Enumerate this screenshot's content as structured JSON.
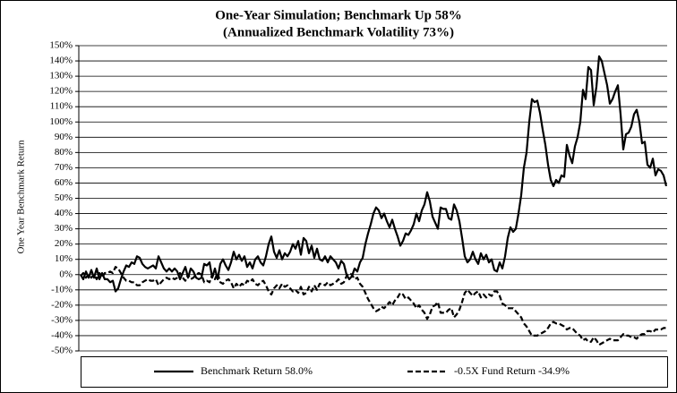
{
  "chart_data": {
    "type": "line",
    "title": "One-Year Simulation; Benchmark Up 58%",
    "subtitle": "(Annualized Benchmark Volatility 73%)",
    "ylabel": "One Year Benchmark Return",
    "ylim": [
      -50,
      150
    ],
    "yticks": [
      {
        "value": -50,
        "label": "-50%"
      },
      {
        "value": -40,
        "label": "-40%"
      },
      {
        "value": -30,
        "label": "-30%"
      },
      {
        "value": -20,
        "label": "-20%"
      },
      {
        "value": -10,
        "label": "-10%"
      },
      {
        "value": 0,
        "label": "0%"
      },
      {
        "value": 10,
        "label": "10%"
      },
      {
        "value": 20,
        "label": "20%"
      },
      {
        "value": 30,
        "label": "30%"
      },
      {
        "value": 40,
        "label": "40%"
      },
      {
        "value": 50,
        "label": "50%"
      },
      {
        "value": 60,
        "label": "60%"
      },
      {
        "value": 70,
        "label": "70%"
      },
      {
        "value": 80,
        "label": "80%"
      },
      {
        "value": 90,
        "label": "90%"
      },
      {
        "value": 100,
        "label": "100%"
      },
      {
        "value": 110,
        "label": "110%"
      },
      {
        "value": 120,
        "label": "120%"
      },
      {
        "value": 130,
        "label": "130%"
      },
      {
        "value": 140,
        "label": "140%"
      },
      {
        "value": 150,
        "label": "150%"
      }
    ],
    "grid": true,
    "legend": "bottom",
    "series": [
      {
        "name": "Benchmark Return 58.0%",
        "color": "#000000",
        "style": "solid",
        "values": [
          0,
          -3,
          2,
          -2,
          3,
          -2,
          4,
          -3,
          1,
          -3,
          -3,
          -5,
          -4,
          -11,
          -9,
          -3,
          2,
          6,
          5,
          8,
          7,
          12,
          11,
          7,
          5,
          4,
          5,
          6,
          4,
          12,
          8,
          4,
          2,
          4,
          2,
          4,
          2,
          -3,
          1,
          5,
          -2,
          4,
          2,
          -2,
          -3,
          -2,
          7,
          6,
          8,
          -2,
          4,
          -3,
          7,
          10,
          6,
          3,
          8,
          15,
          10,
          13,
          9,
          12,
          5,
          8,
          4,
          10,
          12,
          8,
          6,
          12,
          20,
          25,
          15,
          11,
          16,
          10,
          14,
          12,
          15,
          20,
          17,
          22,
          13,
          24,
          22,
          14,
          19,
          11,
          17,
          10,
          9,
          12,
          8,
          12,
          10,
          8,
          4,
          9,
          7,
          0,
          -3,
          -1,
          4,
          2,
          8,
          11,
          20,
          27,
          33,
          40,
          44,
          42,
          37,
          40,
          35,
          31,
          36,
          30,
          25,
          19,
          22,
          27,
          26,
          29,
          33,
          40,
          35,
          42,
          46,
          54,
          48,
          38,
          34,
          30,
          44,
          43,
          43,
          37,
          36,
          46,
          42,
          35,
          24,
          12,
          8,
          10,
          15,
          10,
          7,
          14,
          10,
          13,
          8,
          10,
          3,
          2,
          8,
          4,
          12,
          24,
          31,
          28,
          30,
          40,
          52,
          70,
          80,
          100,
          115,
          113,
          114,
          106,
          95,
          85,
          72,
          62,
          58,
          62,
          60,
          65,
          64,
          85,
          78,
          73,
          84,
          90,
          100,
          121,
          115,
          136,
          134,
          111,
          123,
          143,
          140,
          132,
          124,
          112,
          115,
          120,
          124,
          105,
          82,
          92,
          93,
          97,
          105,
          108,
          100,
          86,
          87,
          72,
          70,
          76,
          65,
          69,
          68,
          65,
          58
        ]
      },
      {
        "name": "-0.5X Fund Return -34.9%",
        "color": "#000000",
        "style": "dashed",
        "values": [
          -1,
          1,
          -2,
          0,
          -2,
          0,
          -3,
          1,
          -2,
          1,
          1,
          2,
          1,
          5,
          4,
          1,
          -2,
          -4,
          -4,
          -5,
          -5,
          -7,
          -7,
          -5,
          -4,
          -3,
          -4,
          -4,
          -3,
          -7,
          -5,
          -3,
          -2,
          -3,
          -2,
          -3,
          -2,
          1,
          -2,
          -4,
          0,
          -3,
          -2,
          0,
          1,
          0,
          -5,
          -4,
          -5,
          0,
          -3,
          1,
          -5,
          -6,
          -4,
          -3,
          -5,
          -9,
          -6,
          -8,
          -6,
          -7,
          -4,
          -5,
          -3,
          -6,
          -7,
          -5,
          -4,
          -7,
          -11,
          -13,
          -9,
          -7,
          -9,
          -6,
          -8,
          -7,
          -9,
          -11,
          -10,
          -12,
          -8,
          -13,
          -12,
          -8,
          -11,
          -7,
          -10,
          -6,
          -6,
          -7,
          -5,
          -7,
          -6,
          -5,
          -3,
          -6,
          -5,
          -1,
          1,
          0,
          -3,
          -2,
          -6,
          -8,
          -12,
          -16,
          -19,
          -22,
          -24,
          -23,
          -21,
          -22,
          -20,
          -18,
          -20,
          -17,
          -15,
          -12,
          -13,
          -16,
          -15,
          -17,
          -19,
          -22,
          -20,
          -23,
          -25,
          -29,
          -26,
          -21,
          -20,
          -18,
          -25,
          -25,
          -25,
          -23,
          -22,
          -28,
          -26,
          -23,
          -18,
          -12,
          -10,
          -12,
          -14,
          -12,
          -11,
          -15,
          -13,
          -15,
          -13,
          -14,
          -11,
          -11,
          -14,
          -19,
          -20,
          -22,
          -22,
          -22,
          -24,
          -26,
          -28,
          -32,
          -34,
          -37,
          -40,
          -40,
          -40,
          -39,
          -38,
          -37,
          -35,
          -32,
          -31,
          -32,
          -32,
          -33,
          -34,
          -36,
          -35,
          -35,
          -37,
          -39,
          -40,
          -43,
          -42,
          -44,
          -44,
          -41,
          -43,
          -46,
          -45,
          -44,
          -43,
          -42,
          -43,
          -43,
          -43,
          -41,
          -39,
          -40,
          -40,
          -41,
          -41,
          -42,
          -40,
          -39,
          -39,
          -37,
          -37,
          -38,
          -36,
          -36,
          -36,
          -35,
          -35
        ]
      }
    ]
  }
}
